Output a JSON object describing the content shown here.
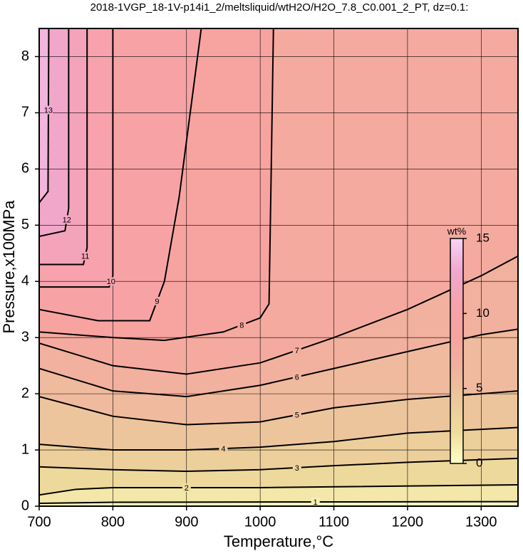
{
  "chart_data": {
    "type": "contour",
    "title": "2018-1VGP_18-1V-p14i1_2/meltsliquid/wtH2O/H2O_7.8_C0.001_2_PT, dz=0.1:",
    "x_label": "Temperature,°C",
    "y_label": "Pressure,x100MPa",
    "xlim": [
      700,
      1350
    ],
    "ylim": [
      0,
      8.5
    ],
    "xticks": [
      700,
      800,
      900,
      1000,
      1100,
      1200,
      1300
    ],
    "yticks": [
      0,
      1,
      2,
      3,
      4,
      5,
      6,
      7,
      8
    ],
    "grid": true,
    "contours": [
      {
        "level": 1,
        "x": [
          700,
          800,
          1350
        ],
        "y": [
          0.05,
          0.07,
          0.08
        ]
      },
      {
        "level": 2,
        "x": [
          700,
          750,
          800,
          1000,
          1350
        ],
        "y": [
          0.2,
          0.3,
          0.33,
          0.33,
          0.38
        ]
      },
      {
        "level": 3,
        "x": [
          700,
          800,
          900,
          1000,
          1100,
          1200,
          1350
        ],
        "y": [
          0.7,
          0.65,
          0.62,
          0.65,
          0.72,
          0.78,
          0.85
        ]
      },
      {
        "level": 4,
        "x": [
          700,
          750,
          800,
          900,
          1000,
          1100,
          1200,
          1350
        ],
        "y": [
          1.1,
          1.05,
          1.0,
          1.0,
          1.05,
          1.15,
          1.3,
          1.4
        ]
      },
      {
        "level": 5,
        "x": [
          700,
          800,
          900,
          1000,
          1100,
          1200,
          1350
        ],
        "y": [
          1.95,
          1.6,
          1.45,
          1.5,
          1.75,
          1.9,
          2.05
        ]
      },
      {
        "level": 6,
        "x": [
          700,
          800,
          900,
          1000,
          1100,
          1200,
          1300,
          1350
        ],
        "y": [
          2.45,
          2.05,
          1.95,
          2.15,
          2.45,
          2.75,
          3.05,
          3.15
        ]
      },
      {
        "level": 7,
        "x": [
          700,
          800,
          900,
          1000,
          1100,
          1200,
          1300,
          1350
        ],
        "y": [
          2.9,
          2.5,
          2.35,
          2.55,
          3.0,
          3.5,
          4.1,
          4.45
        ]
      },
      {
        "level": 8,
        "x": [
          700,
          800,
          870,
          950,
          1000,
          1012,
          1015,
          1018
        ],
        "y": [
          3.1,
          3.0,
          2.95,
          3.1,
          3.35,
          3.6,
          6.0,
          8.5
        ]
      },
      {
        "level": 9,
        "x": [
          700,
          780,
          850,
          870,
          890,
          920
        ],
        "y": [
          3.5,
          3.3,
          3.3,
          4.0,
          5.5,
          8.5
        ]
      },
      {
        "level": 10,
        "x": [
          700,
          795,
          800,
          800
        ],
        "y": [
          3.9,
          3.9,
          4.1,
          8.5
        ]
      },
      {
        "level": 11,
        "x": [
          700,
          760,
          765,
          765
        ],
        "y": [
          4.3,
          4.3,
          4.6,
          8.5
        ]
      },
      {
        "level": 12,
        "x": [
          700,
          735,
          740,
          740
        ],
        "y": [
          4.8,
          4.9,
          5.3,
          8.5
        ]
      },
      {
        "level": 13,
        "x": [
          700,
          712,
          713
        ],
        "y": [
          5.4,
          5.6,
          8.5
        ]
      }
    ],
    "colorbar": {
      "label": "wt%",
      "lim": [
        0,
        15
      ],
      "ticks": [
        0,
        5,
        10,
        15
      ]
    },
    "colormap": [
      "#ffffc8",
      "#eedc9c",
      "#ecc79c",
      "#f2b09e",
      "#f7a3a0",
      "#f7a2ae",
      "#f0a8d0",
      "#f6d4f6"
    ]
  }
}
